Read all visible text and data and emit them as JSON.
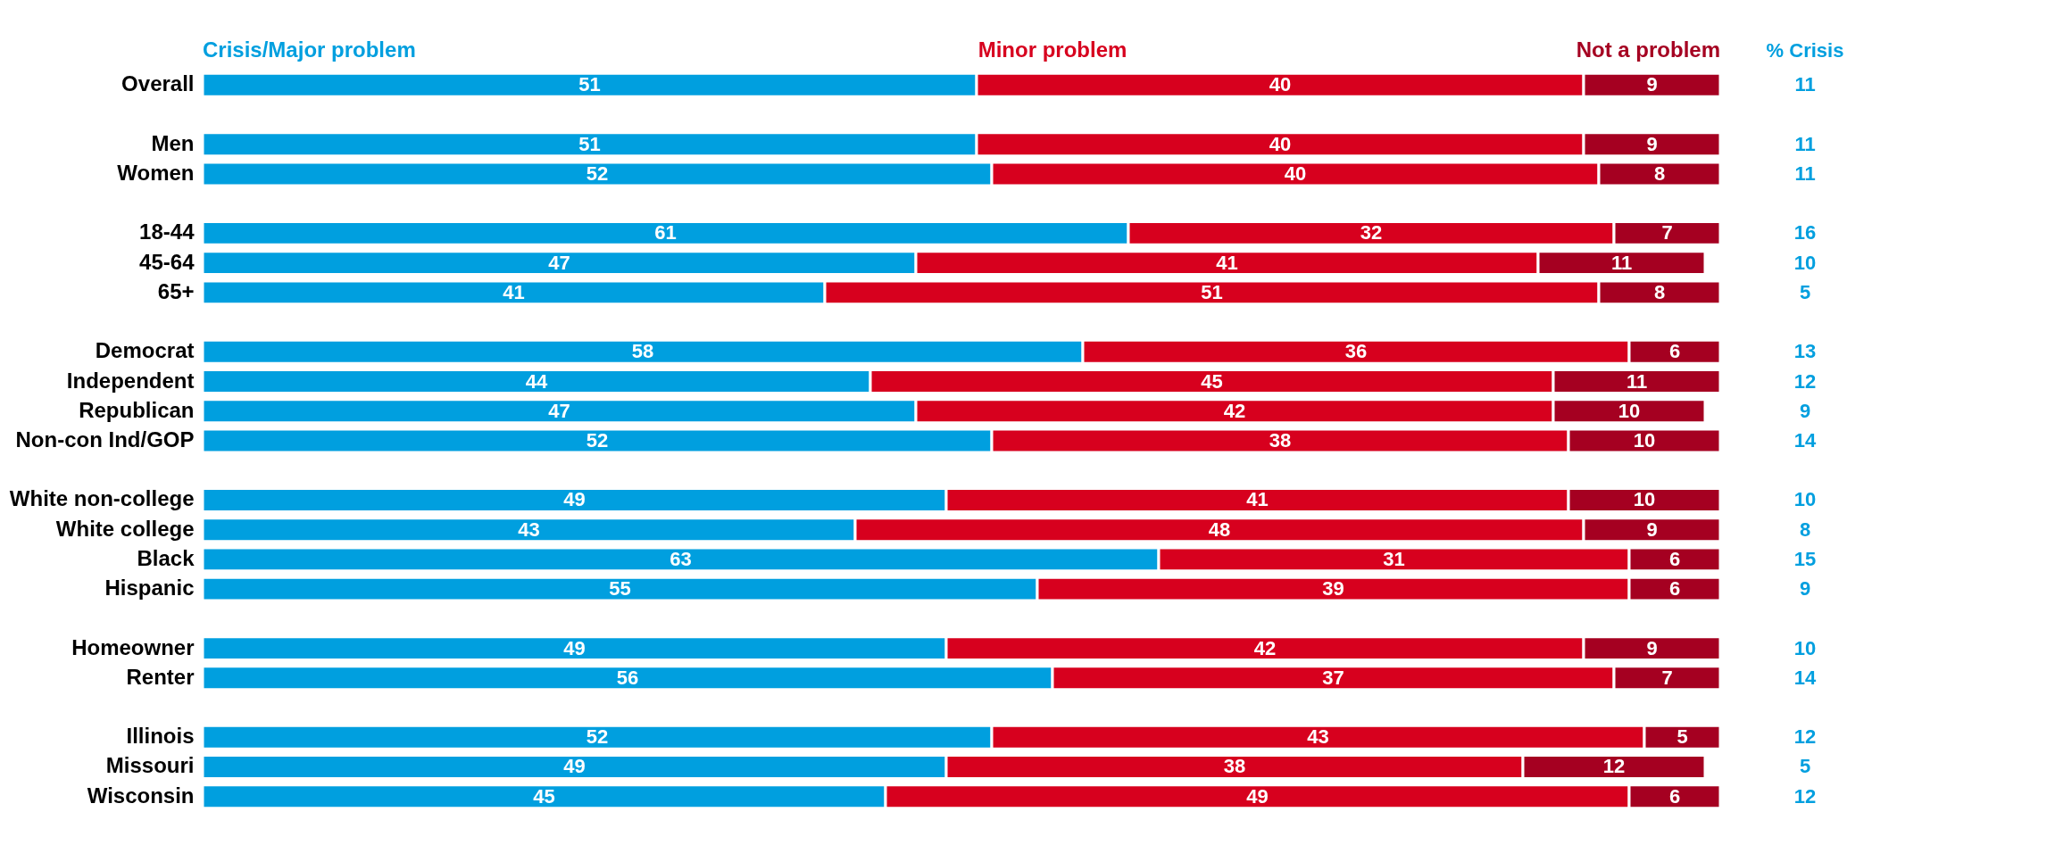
{
  "chart_data": {
    "type": "bar",
    "orientation": "horizontal",
    "stacked": true,
    "data_labels": true,
    "legend": "top",
    "tick_labels": "y",
    "grid": false,
    "categories": [
      "Overall",
      null,
      "Men",
      "Women",
      null,
      "18-44",
      "45-64",
      "65+",
      null,
      "Democrat",
      "Independent",
      "Republican",
      "Non-con Ind/GOP",
      null,
      "White non-college",
      "White college",
      "Black",
      "Hispanic",
      null,
      "Homeowner",
      "Renter",
      null,
      "Illinois",
      "Missouri",
      "Wisconsin"
    ],
    "series": [
      {
        "name": "Crisis/Major problem",
        "color": "#009fdf",
        "values": [
          51,
          null,
          51,
          52,
          null,
          61,
          47,
          41,
          null,
          58,
          44,
          47,
          52,
          null,
          49,
          43,
          63,
          55,
          null,
          49,
          56,
          null,
          52,
          49,
          45
        ]
      },
      {
        "name": "Minor problem",
        "color": "#d7001e",
        "values": [
          40,
          null,
          40,
          40,
          null,
          32,
          41,
          51,
          null,
          36,
          45,
          42,
          38,
          null,
          41,
          48,
          31,
          39,
          null,
          42,
          37,
          null,
          43,
          38,
          49
        ]
      },
      {
        "name": "Not a problem",
        "color": "#a50021",
        "values": [
          9,
          null,
          9,
          8,
          null,
          7,
          11,
          8,
          null,
          6,
          11,
          10,
          10,
          null,
          10,
          9,
          6,
          6,
          null,
          9,
          7,
          null,
          5,
          12,
          6
        ]
      }
    ],
    "annotations": [
      "% Crisis",
      "11",
      "11",
      "11",
      "16",
      "10",
      "5",
      "13",
      "12",
      "9",
      "14",
      "10",
      "8",
      "15",
      "9",
      "10",
      "14",
      "12",
      "5",
      "12"
    ]
  }
}
